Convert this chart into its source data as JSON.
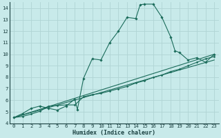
{
  "xlabel": "Humidex (Indice chaleur)",
  "bg_color": "#c8eaea",
  "grid_color": "#b0d4d4",
  "line_color": "#1a6b5a",
  "xlim": [
    -0.5,
    23.5
  ],
  "ylim": [
    4,
    14.5
  ],
  "xticks": [
    0,
    1,
    2,
    3,
    4,
    5,
    6,
    7,
    8,
    9,
    10,
    11,
    12,
    13,
    14,
    15,
    16,
    17,
    18,
    19,
    20,
    21,
    22,
    23
  ],
  "yticks": [
    4,
    5,
    6,
    7,
    8,
    9,
    10,
    11,
    12,
    13,
    14
  ],
  "series1": [
    [
      0,
      4.5
    ],
    [
      1,
      4.85
    ],
    [
      2,
      5.3
    ],
    [
      3,
      5.5
    ],
    [
      4,
      5.3
    ],
    [
      5,
      5.15
    ],
    [
      6,
      5.5
    ],
    [
      7,
      6.1
    ],
    [
      7.3,
      5.2
    ],
    [
      8,
      7.9
    ],
    [
      9,
      9.6
    ],
    [
      10,
      9.5
    ],
    [
      11,
      11.0
    ],
    [
      12,
      12.0
    ],
    [
      13,
      13.2
    ],
    [
      14,
      13.1
    ],
    [
      14.5,
      14.3
    ],
    [
      15,
      14.35
    ],
    [
      16,
      14.35
    ],
    [
      17,
      13.2
    ],
    [
      18,
      11.5
    ],
    [
      18.5,
      10.3
    ],
    [
      19,
      10.15
    ],
    [
      20,
      9.5
    ],
    [
      21,
      9.7
    ],
    [
      22,
      9.3
    ],
    [
      23,
      10.0
    ]
  ],
  "series2": [
    [
      0,
      4.5
    ],
    [
      23,
      9.5
    ]
  ],
  "series3": [
    [
      0,
      4.5
    ],
    [
      23,
      10.0
    ]
  ],
  "series4": [
    [
      0,
      4.5
    ],
    [
      1,
      4.6
    ],
    [
      2,
      4.8
    ],
    [
      3,
      5.05
    ],
    [
      4,
      5.5
    ],
    [
      5,
      5.55
    ],
    [
      6,
      5.6
    ],
    [
      7,
      5.6
    ],
    [
      8,
      6.3
    ],
    [
      9,
      6.5
    ],
    [
      10,
      6.6
    ],
    [
      11,
      6.8
    ],
    [
      12,
      7.0
    ],
    [
      13,
      7.2
    ],
    [
      14,
      7.5
    ],
    [
      15,
      7.7
    ],
    [
      16,
      8.0
    ],
    [
      17,
      8.2
    ],
    [
      18,
      8.5
    ],
    [
      19,
      8.7
    ],
    [
      20,
      9.0
    ],
    [
      21,
      9.3
    ],
    [
      22,
      9.6
    ],
    [
      23,
      9.8
    ]
  ]
}
